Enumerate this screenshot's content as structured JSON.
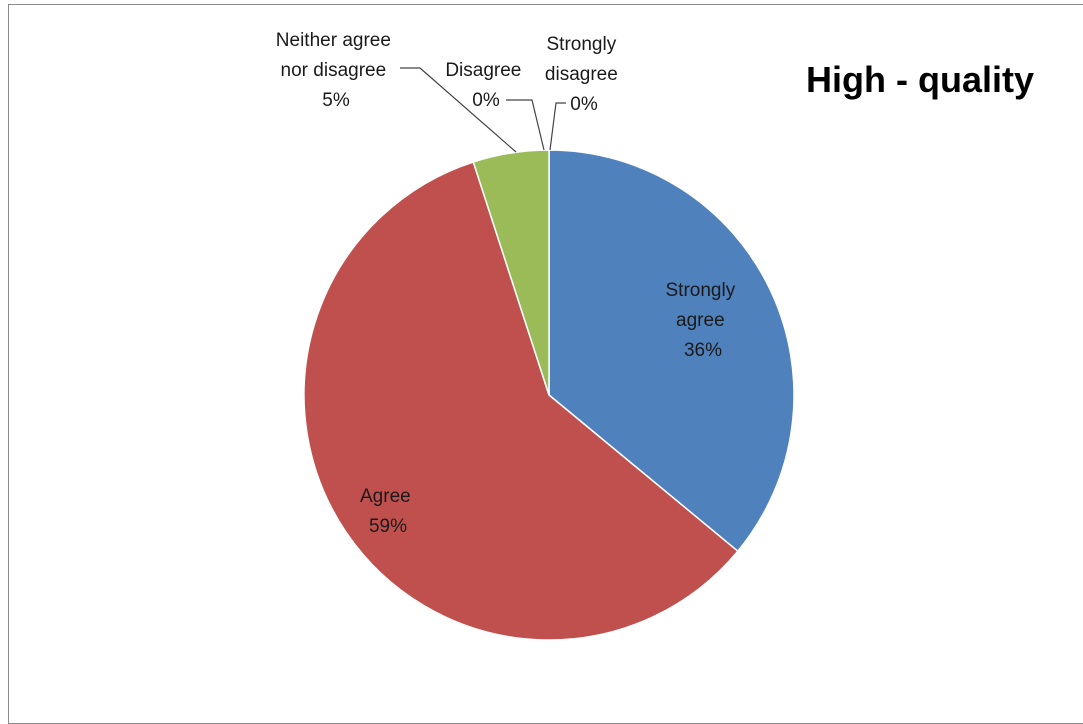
{
  "chart_data": {
    "type": "pie",
    "title": "High - quality",
    "slices": [
      {
        "label_lines": [
          "Strongly",
          "agree"
        ],
        "value": 36,
        "pct_label": "36%",
        "color": "#4F81BD"
      },
      {
        "label_lines": [
          "Agree"
        ],
        "value": 59,
        "pct_label": "59%",
        "color": "#C0504D"
      },
      {
        "label_lines": [
          "Neither agree",
          "nor disagree"
        ],
        "value": 5,
        "pct_label": "5%",
        "color": "#9BBB59"
      },
      {
        "label_lines": [
          "Disagree"
        ],
        "value": 0,
        "pct_label": "0%",
        "color": "#8064A2"
      },
      {
        "label_lines": [
          "Strongly",
          "disagree"
        ],
        "value": 0,
        "pct_label": "0%",
        "color": "#4BACC6"
      }
    ],
    "start": "top",
    "direction": "clockwise",
    "legend": "none"
  }
}
